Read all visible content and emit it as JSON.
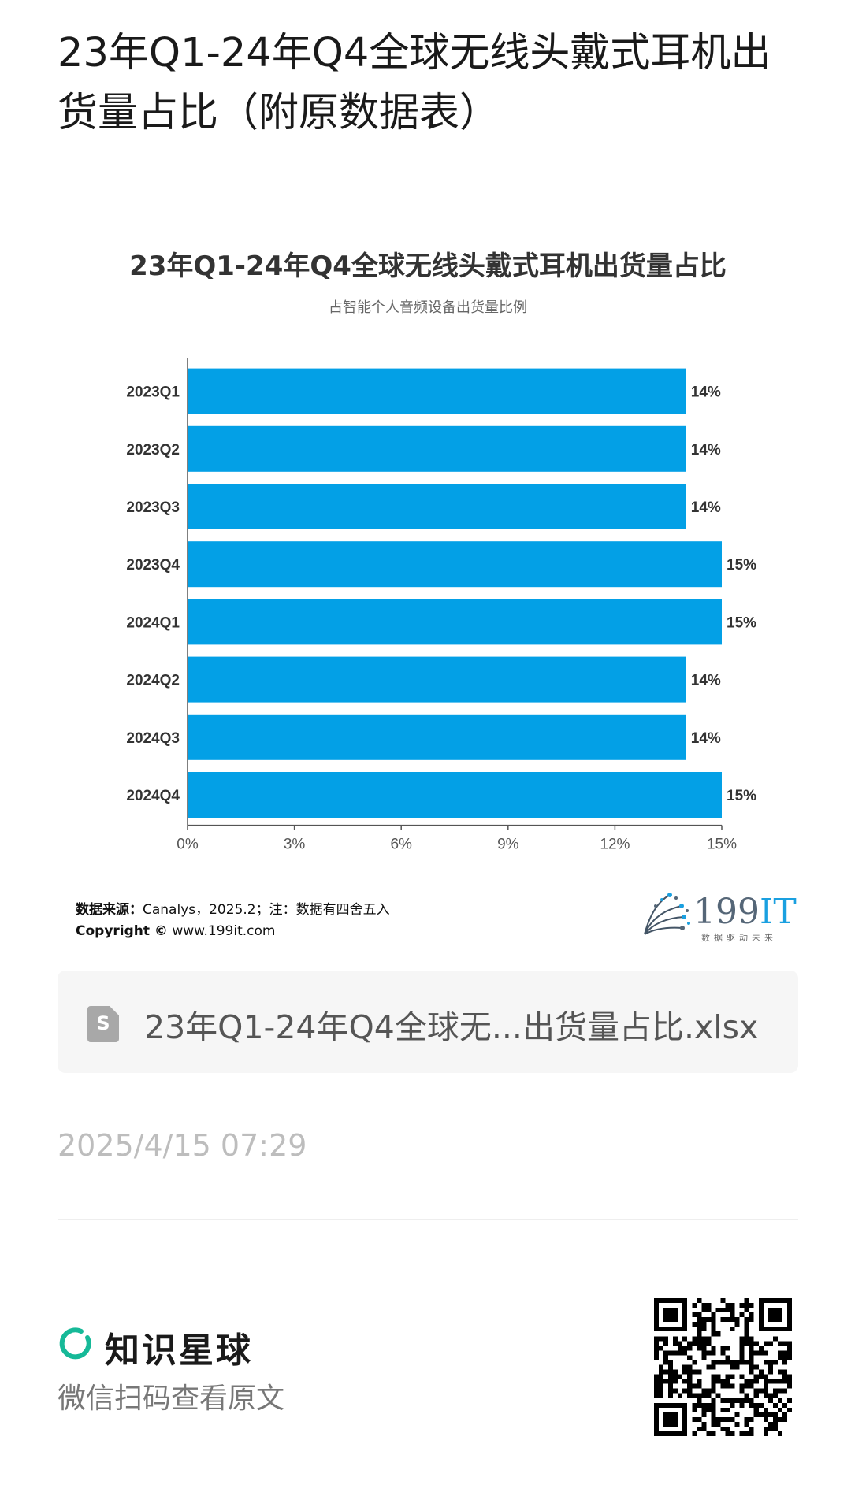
{
  "post": {
    "title": "23年Q1-24年Q4全球无线头戴式耳机出货量占比（附原数据表）",
    "file_name": "23年Q1-24年Q4全球无...出货量占比.xlsx",
    "file_icon_letter": "S",
    "time": "2025/4/15 07:29"
  },
  "chart_data": {
    "type": "bar",
    "orientation": "horizontal",
    "title": "23年Q1-24年Q4全球无线头戴式耳机出货量占比",
    "subtitle": "占智能个人音频设备出货量比例",
    "categories": [
      "2023Q1",
      "2023Q2",
      "2023Q3",
      "2023Q4",
      "2024Q1",
      "2024Q2",
      "2024Q3",
      "2024Q4"
    ],
    "values": [
      14,
      14,
      14,
      15,
      15,
      14,
      14,
      15
    ],
    "value_labels": [
      "14%",
      "14%",
      "14%",
      "15%",
      "15%",
      "14%",
      "14%",
      "15%"
    ],
    "xlim": [
      0,
      15
    ],
    "xticks": [
      "0%",
      "3%",
      "6%",
      "9%",
      "12%",
      "15%"
    ],
    "bar_color": "#03a0e6",
    "grid": false
  },
  "source": {
    "label": "数据来源：",
    "text": "Canalys，2025.2；注：数据有四舍五入",
    "copyright_label": "Copyright ©",
    "copyright_text": " www.199it.com"
  },
  "logo": {
    "number": "199",
    "it": "IT",
    "tagline": "数据驱动未来"
  },
  "footer": {
    "brand_name": "知识星球",
    "brand_color": "#16b998",
    "scan_hint": "微信扫码查看原文"
  }
}
